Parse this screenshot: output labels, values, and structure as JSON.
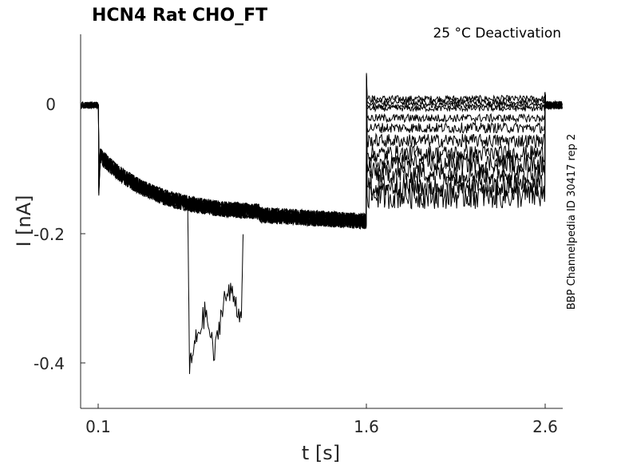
{
  "chart_data": {
    "type": "line",
    "title": "HCN4  Rat  CHO_FT",
    "annotation": "25 °C  Deactivation",
    "side_label": "BBP Channelpedia ID 30417 rep 2",
    "xlabel": "t [s]",
    "ylabel": "I [nA]",
    "xticks": [
      "0.1",
      "1.6",
      "2.6"
    ],
    "yticks": [
      "0",
      "-0.2",
      "-0.4"
    ],
    "xlim": [
      0.0,
      2.7
    ],
    "ylim": [
      -0.47,
      0.11
    ],
    "grid": false,
    "line_color": "#000000",
    "protocol": {
      "hold_end": 0.1,
      "step_end": 1.6,
      "tail_end": 2.6,
      "step_current_start": -0.075,
      "step_current_min": -0.17,
      "step_current_end": -0.18,
      "tail_levels": [
        0.01,
        0.005,
        0.0,
        -0.005,
        -0.02,
        -0.035,
        -0.055,
        -0.075,
        -0.09,
        -0.105,
        -0.125,
        -0.14
      ]
    },
    "series": [
      {
        "values_note": "",
        "x": [
          0.0,
          0.1,
          0.11,
          0.2,
          0.4,
          0.6,
          0.8,
          0.9,
          1.0,
          1.2,
          1.4,
          1.6,
          1.61,
          2.0,
          2.59,
          2.6,
          2.7
        ],
        "y": [
          0.0,
          0.0,
          -0.075,
          -0.095,
          -0.13,
          -0.155,
          -0.165,
          -0.17,
          -0.17,
          -0.168,
          -0.172,
          -0.18,
          0.01,
          0.01,
          0.01,
          0.0,
          0.0
        ]
      }
    ],
    "outlier_trace": {
      "x": [
        0.6,
        0.61,
        0.65,
        0.7,
        0.75,
        0.8,
        0.85,
        0.9,
        0.91
      ],
      "y": [
        -0.155,
        -0.41,
        -0.36,
        -0.32,
        -0.39,
        -0.3,
        -0.29,
        -0.33,
        -0.2
      ]
    }
  }
}
